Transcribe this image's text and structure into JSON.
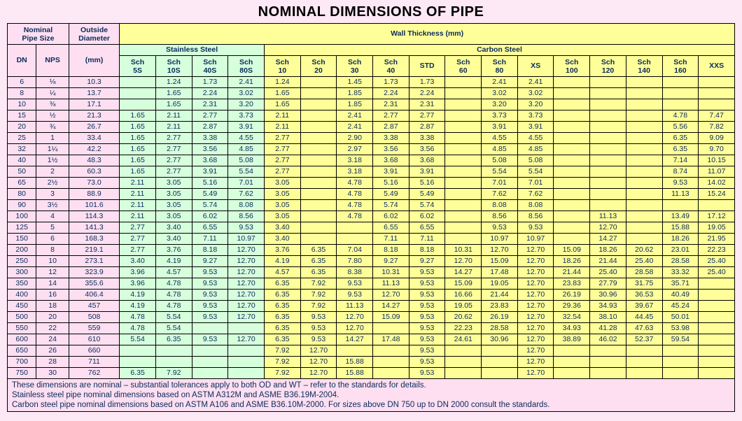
{
  "title": "NOMINAL DIMENSIONS OF PIPE",
  "colors": {
    "pink": "#fddff1",
    "green": "#d6ffdc",
    "yellow": "#ffff99",
    "page_bg": "#fde8f5",
    "text": "#0a2a5a",
    "border": "#000000"
  },
  "header": {
    "nominal_pipe_size": "Nominal Pipe Size",
    "outside_diameter": "Outside Diameter",
    "od_unit": "(mm)",
    "wall_thickness": "Wall Thickness (mm)",
    "stainless_steel": "Stainless Steel",
    "carbon_steel": "Carbon Steel",
    "dn": "DN",
    "nps": "NPS",
    "ss_cols": [
      "Sch 5S",
      "Sch 10S",
      "Sch 40S",
      "Sch 80S"
    ],
    "cs_cols": [
      "Sch 10",
      "Sch 20",
      "Sch 30",
      "Sch 40",
      "STD",
      "Sch 60",
      "Sch 80",
      "XS",
      "Sch 100",
      "Sch 120",
      "Sch 140",
      "Sch 160",
      "XXS"
    ]
  },
  "rows": [
    {
      "dn": "6",
      "nps": "⅛",
      "od": "10.3",
      "ss": [
        "",
        "1.24",
        "1.73",
        "2.41"
      ],
      "cs": [
        "1.24",
        "",
        "1.45",
        "1.73",
        "1.73",
        "",
        "2.41",
        "2.41",
        "",
        "",
        "",
        "",
        ""
      ]
    },
    {
      "dn": "8",
      "nps": "¼",
      "od": "13.7",
      "ss": [
        "",
        "1.65",
        "2.24",
        "3.02"
      ],
      "cs": [
        "1.65",
        "",
        "1.85",
        "2.24",
        "2.24",
        "",
        "3.02",
        "3.02",
        "",
        "",
        "",
        "",
        ""
      ]
    },
    {
      "dn": "10",
      "nps": "⅜",
      "od": "17.1",
      "ss": [
        "",
        "1.65",
        "2.31",
        "3.20"
      ],
      "cs": [
        "1.65",
        "",
        "1.85",
        "2.31",
        "2.31",
        "",
        "3.20",
        "3.20",
        "",
        "",
        "",
        "",
        ""
      ]
    },
    {
      "dn": "15",
      "nps": "½",
      "od": "21.3",
      "ss": [
        "1.65",
        "2.11",
        "2.77",
        "3.73"
      ],
      "cs": [
        "2.11",
        "",
        "2.41",
        "2.77",
        "2.77",
        "",
        "3.73",
        "3.73",
        "",
        "",
        "",
        "4.78",
        "7.47"
      ]
    },
    {
      "dn": "20",
      "nps": "¾",
      "od": "26.7",
      "ss": [
        "1.65",
        "2.11",
        "2.87",
        "3.91"
      ],
      "cs": [
        "2.11",
        "",
        "2.41",
        "2.87",
        "2.87",
        "",
        "3.91",
        "3.91",
        "",
        "",
        "",
        "5.56",
        "7.82"
      ]
    },
    {
      "dn": "25",
      "nps": "1",
      "od": "33.4",
      "ss": [
        "1.65",
        "2.77",
        "3.38",
        "4.55"
      ],
      "cs": [
        "2.77",
        "",
        "2.90",
        "3.38",
        "3.38",
        "",
        "4.55",
        "4.55",
        "",
        "",
        "",
        "6.35",
        "9.09"
      ]
    },
    {
      "dn": "32",
      "nps": "1¼",
      "od": "42.2",
      "ss": [
        "1.65",
        "2.77",
        "3.56",
        "4.85"
      ],
      "cs": [
        "2.77",
        "",
        "2.97",
        "3.56",
        "3.56",
        "",
        "4.85",
        "4.85",
        "",
        "",
        "",
        "6.35",
        "9.70"
      ]
    },
    {
      "dn": "40",
      "nps": "1½",
      "od": "48.3",
      "ss": [
        "1.65",
        "2.77",
        "3.68",
        "5.08"
      ],
      "cs": [
        "2.77",
        "",
        "3.18",
        "3.68",
        "3.68",
        "",
        "5.08",
        "5.08",
        "",
        "",
        "",
        "7.14",
        "10.15"
      ]
    },
    {
      "dn": "50",
      "nps": "2",
      "od": "60.3",
      "ss": [
        "1.65",
        "2.77",
        "3.91",
        "5.54"
      ],
      "cs": [
        "2.77",
        "",
        "3.18",
        "3.91",
        "3.91",
        "",
        "5.54",
        "5.54",
        "",
        "",
        "",
        "8.74",
        "11.07"
      ]
    },
    {
      "dn": "65",
      "nps": "2½",
      "od": "73.0",
      "ss": [
        "2.11",
        "3.05",
        "5.16",
        "7.01"
      ],
      "cs": [
        "3.05",
        "",
        "4.78",
        "5.16",
        "5.16",
        "",
        "7.01",
        "7.01",
        "",
        "",
        "",
        "9.53",
        "14.02"
      ]
    },
    {
      "dn": "80",
      "nps": "3",
      "od": "88.9",
      "ss": [
        "2.11",
        "3.05",
        "5.49",
        "7.62"
      ],
      "cs": [
        "3.05",
        "",
        "4.78",
        "5.49",
        "5.49",
        "",
        "7.62",
        "7.62",
        "",
        "",
        "",
        "11.13",
        "15.24"
      ]
    },
    {
      "dn": "90",
      "nps": "3½",
      "od": "101.6",
      "ss": [
        "2.11",
        "3.05",
        "5.74",
        "8.08"
      ],
      "cs": [
        "3.05",
        "",
        "4.78",
        "5.74",
        "5.74",
        "",
        "8.08",
        "8.08",
        "",
        "",
        "",
        "",
        ""
      ]
    },
    {
      "dn": "100",
      "nps": "4",
      "od": "114.3",
      "ss": [
        "2.11",
        "3.05",
        "6.02",
        "8.56"
      ],
      "cs": [
        "3.05",
        "",
        "4.78",
        "6.02",
        "6.02",
        "",
        "8.56",
        "8.56",
        "",
        "11.13",
        "",
        "13.49",
        "17.12"
      ]
    },
    {
      "dn": "125",
      "nps": "5",
      "od": "141.3",
      "ss": [
        "2.77",
        "3.40",
        "6.55",
        "9.53"
      ],
      "cs": [
        "3.40",
        "",
        "",
        "6.55",
        "6.55",
        "",
        "9.53",
        "9.53",
        "",
        "12.70",
        "",
        "15.88",
        "19.05"
      ]
    },
    {
      "dn": "150",
      "nps": "6",
      "od": "168.3",
      "ss": [
        "2.77",
        "3.40",
        "7.11",
        "10.97"
      ],
      "cs": [
        "3.40",
        "",
        "",
        "7.11",
        "7.11",
        "",
        "10.97",
        "10.97",
        "",
        "14.27",
        "",
        "18.26",
        "21.95"
      ]
    },
    {
      "dn": "200",
      "nps": "8",
      "od": "219.1",
      "ss": [
        "2.77",
        "3.76",
        "8.18",
        "12.70"
      ],
      "cs": [
        "3.76",
        "6.35",
        "7.04",
        "8.18",
        "8.18",
        "10.31",
        "12.70",
        "12.70",
        "15.09",
        "18.26",
        "20.62",
        "23.01",
        "22.23"
      ]
    },
    {
      "dn": "250",
      "nps": "10",
      "od": "273.1",
      "ss": [
        "3.40",
        "4.19",
        "9.27",
        "12.70"
      ],
      "cs": [
        "4.19",
        "6.35",
        "7.80",
        "9.27",
        "9.27",
        "12.70",
        "15.09",
        "12.70",
        "18.26",
        "21.44",
        "25.40",
        "28.58",
        "25.40"
      ]
    },
    {
      "dn": "300",
      "nps": "12",
      "od": "323.9",
      "ss": [
        "3.96",
        "4.57",
        "9.53",
        "12.70"
      ],
      "cs": [
        "4.57",
        "6.35",
        "8.38",
        "10.31",
        "9.53",
        "14.27",
        "17.48",
        "12.70",
        "21.44",
        "25.40",
        "28.58",
        "33.32",
        "25.40"
      ]
    },
    {
      "dn": "350",
      "nps": "14",
      "od": "355.6",
      "ss": [
        "3.96",
        "4.78",
        "9.53",
        "12.70"
      ],
      "cs": [
        "6.35",
        "7.92",
        "9.53",
        "11.13",
        "9.53",
        "15.09",
        "19.05",
        "12.70",
        "23.83",
        "27.79",
        "31.75",
        "35.71",
        ""
      ]
    },
    {
      "dn": "400",
      "nps": "16",
      "od": "406.4",
      "ss": [
        "4.19",
        "4.78",
        "9.53",
        "12.70"
      ],
      "cs": [
        "6.35",
        "7.92",
        "9.53",
        "12.70",
        "9.53",
        "16.66",
        "21.44",
        "12.70",
        "26.19",
        "30.96",
        "36.53",
        "40.49",
        ""
      ]
    },
    {
      "dn": "450",
      "nps": "18",
      "od": "457",
      "ss": [
        "4.19",
        "4.78",
        "9.53",
        "12.70"
      ],
      "cs": [
        "6.35",
        "7.92",
        "11.13",
        "14.27",
        "9.53",
        "19.05",
        "23.83",
        "12.70",
        "29.36",
        "34.93",
        "39.67",
        "45.24",
        ""
      ]
    },
    {
      "dn": "500",
      "nps": "20",
      "od": "508",
      "ss": [
        "4.78",
        "5.54",
        "9.53",
        "12.70"
      ],
      "cs": [
        "6.35",
        "9.53",
        "12.70",
        "15.09",
        "9.53",
        "20.62",
        "26.19",
        "12.70",
        "32.54",
        "38.10",
        "44.45",
        "50.01",
        ""
      ]
    },
    {
      "dn": "550",
      "nps": "22",
      "od": "559",
      "ss": [
        "4.78",
        "5.54",
        "",
        ""
      ],
      "cs": [
        "6.35",
        "9.53",
        "12.70",
        "",
        "9.53",
        "22.23",
        "28.58",
        "12.70",
        "34.93",
        "41.28",
        "47.63",
        "53.98",
        ""
      ]
    },
    {
      "dn": "600",
      "nps": "24",
      "od": "610",
      "ss": [
        "5.54",
        "6.35",
        "9.53",
        "12.70"
      ],
      "cs": [
        "6.35",
        "9.53",
        "14.27",
        "17.48",
        "9.53",
        "24.61",
        "30.96",
        "12.70",
        "38.89",
        "46.02",
        "52.37",
        "59.54",
        ""
      ]
    },
    {
      "dn": "650",
      "nps": "26",
      "od": "660",
      "ss": [
        "",
        "",
        "",
        ""
      ],
      "cs": [
        "7.92",
        "12.70",
        "",
        "",
        "9.53",
        "",
        "",
        "12.70",
        "",
        "",
        "",
        "",
        ""
      ]
    },
    {
      "dn": "700",
      "nps": "28",
      "od": "711",
      "ss": [
        "",
        "",
        "",
        ""
      ],
      "cs": [
        "7.92",
        "12.70",
        "15.88",
        "",
        "9.53",
        "",
        "",
        "12.70",
        "",
        "",
        "",
        "",
        ""
      ]
    },
    {
      "dn": "750",
      "nps": "30",
      "od": "762",
      "ss": [
        "6.35",
        "7.92",
        "",
        ""
      ],
      "cs": [
        "7.92",
        "12.70",
        "15.88",
        "",
        "9.53",
        "",
        "",
        "12.70",
        "",
        "",
        "",
        "",
        ""
      ]
    }
  ],
  "footer": "These dimensions are nominal – substantial tolerances apply to both OD and WT – refer to the standards for details.\nStainless steel pipe nominal dimensions based on ASTM A312M and ASME B36.19M-2004.\nCarbon steel pipe nominal dimensions based on ASTM A106 and ASME B36.10M-2000. For sizes above DN 750 up to DN 2000 consult the standards."
}
